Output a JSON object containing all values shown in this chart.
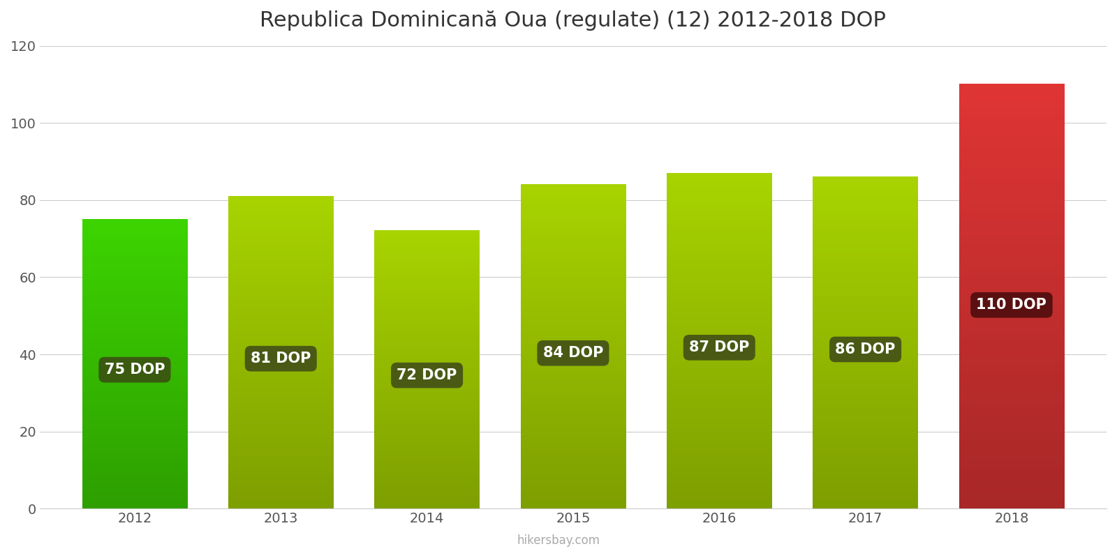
{
  "title": "Republica Dominicană Oua (regulate) (12) 2012-2018 DOP",
  "years": [
    2012,
    2013,
    2014,
    2015,
    2016,
    2017,
    2018
  ],
  "values": [
    75,
    81,
    72,
    84,
    87,
    86,
    110
  ],
  "bar_colors": [
    "#3dd400",
    "#a8d400",
    "#a8d400",
    "#a8d400",
    "#a8d400",
    "#a8d400",
    "#e03535"
  ],
  "label_bg_colors": [
    "#3a5a10",
    "#4a5a15",
    "#4a5a15",
    "#4a5a15",
    "#4a5a15",
    "#4a5a15",
    "#5a1010"
  ],
  "ylim": [
    0,
    120
  ],
  "yticks": [
    0,
    20,
    40,
    60,
    80,
    100,
    120
  ],
  "watermark": "hikersbay.com",
  "background_color": "#ffffff",
  "title_fontsize": 22,
  "tick_fontsize": 14,
  "label_fontsize": 15,
  "bar_width": 0.72
}
